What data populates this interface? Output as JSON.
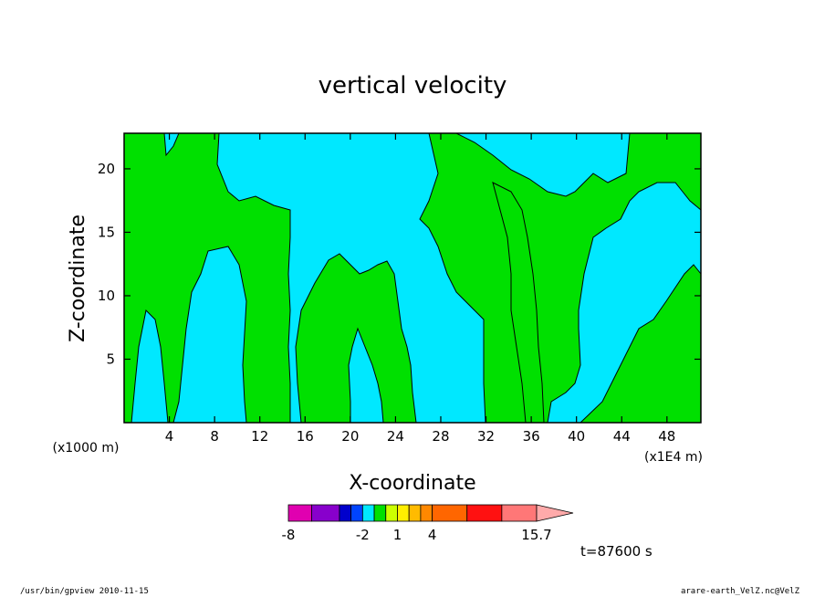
{
  "chart_data": {
    "type": "heatmap",
    "title": "vertical velocity",
    "xlabel": "X-coordinate",
    "ylabel": "Z-coordinate",
    "x_scale_note": "(x1E4 m)",
    "y_scale_note": "(x1000 m)",
    "xlim": [
      0,
      51
    ],
    "ylim": [
      0,
      22.8
    ],
    "x_ticks": [
      "4",
      "8",
      "12",
      "16",
      "20",
      "24",
      "28",
      "32",
      "36",
      "40",
      "44",
      "48"
    ],
    "y_ticks": [
      "5",
      "10",
      "15",
      "20"
    ],
    "x_tick_values": [
      4,
      8,
      12,
      16,
      20,
      24,
      28,
      32,
      36,
      40,
      44,
      48
    ],
    "y_tick_values": [
      5,
      10,
      15,
      20
    ],
    "colors": {
      "negative": "#00e8ff",
      "positive": "#00e000"
    },
    "colorbar": {
      "levels": [
        -8,
        -6,
        -4,
        -3,
        -2,
        -1,
        0,
        1,
        2,
        3,
        4,
        7,
        10,
        13,
        15.7
      ],
      "colors": [
        "#e000b0",
        "#8800cc",
        "#0000cc",
        "#0044ff",
        "#00e8ff",
        "#00e000",
        "#ccff00",
        "#ffee00",
        "#ffbb00",
        "#ff8800",
        "#ff6600",
        "#ff1111",
        "#ff7777",
        "#ffaaaa"
      ],
      "labels": [
        "-8",
        "-2",
        "1",
        "4",
        "15.7"
      ]
    },
    "timestamp": "t=87600 s",
    "grid": false
  },
  "footer": {
    "left": "/usr/bin/gpview   2010-11-15",
    "right": "arare-earth_VelZ.nc@VelZ"
  }
}
